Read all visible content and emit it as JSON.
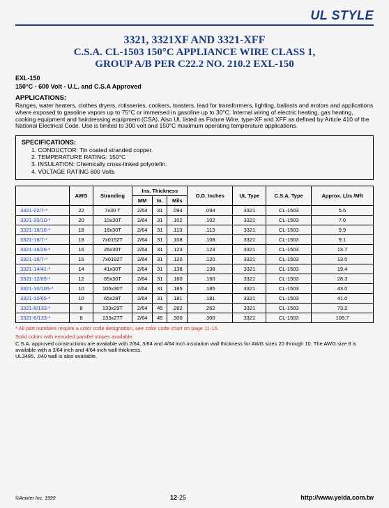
{
  "header": {
    "style_label": "UL STYLE"
  },
  "title": {
    "line1": "3321, 3321XF AND 3321-XFF",
    "line2": "C.S.A. CL-1503 150°C APPLIANCE WIRE CLASS 1,",
    "line3": "GROUP A/B PER C22.2 NO. 210.2 EXL-150"
  },
  "approval": {
    "code": "EXL-150",
    "rating": "150°C - 600 Volt - U.L. and C.S.A Approved"
  },
  "applications": {
    "heading": "APPLICATIONS:",
    "text": "Ranges, water heaters, clothes dryers, rotisseries, cookers, toasters, lead for transformers, lighting, ballasts and motors and applications where exposed to gasoline vapors up to 75°C or immersed in gasoline up to 30°C.  Internal wiring of electric heating, gas heating, cooking equipment and hairdressing equipment (CSA).  Also UL listed as Fixture Wire, type-XF and XFF as defined by Article 410 of the National Electrical Code. Use is limited to 300 volt and 150°C maximum operating temperature applications."
  },
  "specs": {
    "heading": "SPECIFICATIONS:",
    "items": [
      "1. CONDUCTOR: Tin coated stranded copper.",
      "2. TEMPERATURE RATING:  150°C",
      "3. INSULATION: Chemically cross-linked polyolefin.",
      "4. VOLTAGE RATING 600 Volts"
    ]
  },
  "table": {
    "group_header": "Ins. Thickness",
    "columns": [
      "",
      "AWG",
      "Stranding",
      "MM",
      "In.",
      "Mils",
      "O.D. Inches",
      "UL Type",
      "C.S.A. Type",
      "Approx. Lbs /Mft"
    ],
    "rows": [
      [
        "3321-22/7-*",
        "22",
        "7x30 T",
        "2/64",
        "31",
        ".094",
        ".094",
        "3321",
        "CL-1503",
        "5.5"
      ],
      [
        "3321-20/10-*",
        "20",
        "10x30T",
        "2/64",
        "31",
        ".102",
        ".102",
        "3321",
        "CL-1503",
        "7.0"
      ],
      [
        "3321-18/16-*",
        "18",
        "16x30T",
        "2/64",
        "31",
        ".113",
        ".113",
        "3321",
        "CL-1503",
        "9.9"
      ],
      [
        "3321-18/7-*",
        "18",
        "7x0152T",
        "2/64",
        "31",
        ".108",
        ".108",
        "3321",
        "CL-1503",
        "9.1"
      ],
      [
        "3321-16/26-*",
        "16",
        "26x30T",
        "2/64",
        "31",
        ".123",
        ".123",
        "3321",
        "CL-1503",
        "13.7"
      ],
      [
        "3321-16/7-*",
        "16",
        "7x0192T",
        "2/64",
        "31",
        ".120",
        ".120",
        "3321",
        "CL-1503",
        "13.0"
      ],
      [
        "3321-14/41-*",
        "14",
        "41x30T",
        "2/64",
        "31",
        ".138",
        ".138",
        "3321",
        "CL-1503",
        "19.4"
      ],
      [
        "3321-12/65-*",
        "12",
        "65x30T",
        "2/64",
        "31",
        ".160",
        ".160",
        "3321",
        "CL-1503",
        "28.3"
      ],
      [
        "3321-10/105-*",
        "10",
        "105x30T",
        "2/64",
        "31",
        ".185",
        ".185",
        "3321",
        "CL-1503",
        "43.0"
      ],
      [
        "3321-10/65-*",
        "10",
        "65x28T",
        "2/64",
        "31",
        ".181",
        ".181",
        "3321",
        "CL-1503",
        "41.0"
      ],
      [
        "3321-8/133-*",
        "8",
        "133x29T",
        "2/64",
        "45",
        ".262",
        ".262",
        "3321",
        "CL-1503",
        "73.2"
      ],
      [
        "3321-6/133-*",
        "6",
        "133x27T",
        "2/64",
        "45",
        ".300",
        ".300",
        "3321",
        "CL-1503",
        "108.7"
      ]
    ]
  },
  "footnotes": {
    "red1": "* All part numbers require a color code designation, see color code chart on page 11-15.",
    "red2": "Solid colors with extruded parallel stripes available.",
    "black1": "C.S.A. approved constructions are available with 2/64, 3/64 and 4/64 inch insulation wall thickness for AWG sizes 20 through 10. The AWG size 8 is available with a 3/64 inch and 4/64 inch wall thickness.",
    "black2": "UL3485, .040 wall is also available."
  },
  "footer": {
    "copyright": "©Anixter Inc. 1999",
    "page_prefix": "12",
    "page_suffix": "-25",
    "url": "http://www.yeida.com.tw"
  }
}
